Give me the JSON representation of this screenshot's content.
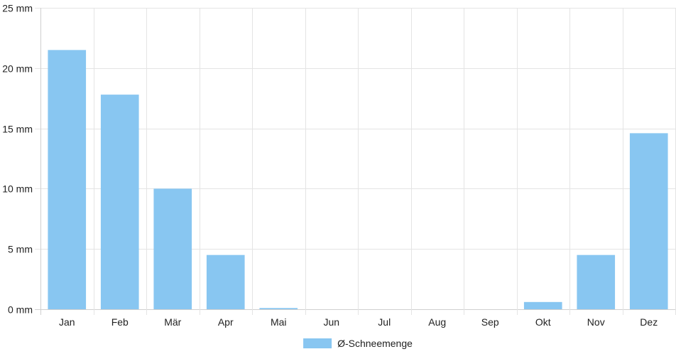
{
  "chart_data": {
    "type": "bar",
    "categories": [
      "Jan",
      "Feb",
      "Mär",
      "Apr",
      "Mai",
      "Jun",
      "Jul",
      "Aug",
      "Sep",
      "Okt",
      "Nov",
      "Dez"
    ],
    "series": [
      {
        "name": "Ø-Schneemenge",
        "values": [
          21.5,
          17.8,
          10.0,
          4.5,
          0.1,
          0,
          0,
          0,
          0,
          0.6,
          4.5,
          14.6
        ],
        "color": "#88c6f1"
      }
    ],
    "y_ticks": [
      0,
      5,
      10,
      15,
      20,
      25
    ],
    "y_unit": "mm",
    "ylim": [
      0,
      25
    ],
    "grid": true,
    "legend_position": "bottom"
  }
}
